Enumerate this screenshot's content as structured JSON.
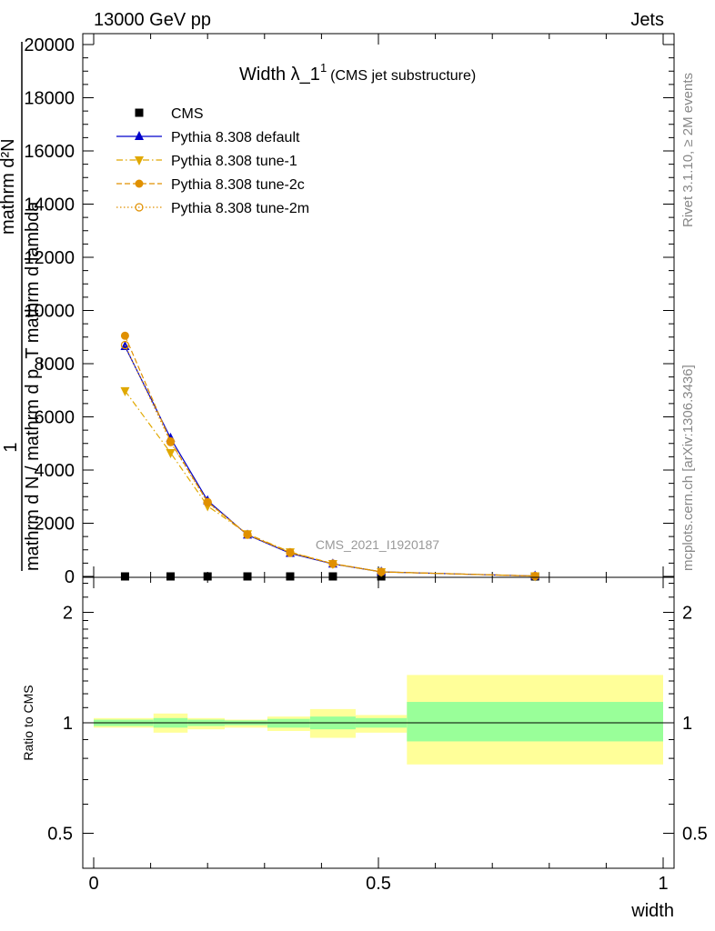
{
  "header": {
    "left": "13000 GeV pp",
    "right": "Jets"
  },
  "side": {
    "rivet": "Rivet 3.1.10, ≥ 2M events",
    "mcplots": "mcplots.cern.ch [arXiv:1306.3436]"
  },
  "watermark": "CMS_2021_I1920187",
  "chart_data": [
    {
      "type": "line",
      "title": "Width λ_1",
      "title_sup": "1",
      "subtitle": "(CMS jet substructure)",
      "ylabel_numerator": "1",
      "ylabel_denominator": "mathrm d N / mathrm d p_T mathrm d lambda",
      "ylabel_top": "mathrm d²N",
      "xlim": [
        0,
        1
      ],
      "ylim": [
        0,
        20500
      ],
      "y_ticks": [
        0,
        2000,
        4000,
        6000,
        8000,
        10000,
        12000,
        14000,
        16000,
        18000,
        20000
      ],
      "y_tick_labels": [
        "0",
        "2000",
        "4000",
        "6000",
        "8000",
        "10000",
        "12000",
        "14000",
        "16000",
        "18000",
        "20000"
      ],
      "x": [
        0.055,
        0.135,
        0.2,
        0.27,
        0.345,
        0.42,
        0.505,
        0.775
      ],
      "series": [
        {
          "name": "CMS",
          "color": "#000000",
          "marker": "square",
          "line": "none",
          "values": [
            0,
            0,
            0,
            0,
            0,
            0,
            0,
            0
          ]
        },
        {
          "name": "Pythia 8.308 default",
          "color": "#0000cc",
          "marker": "triangle-up",
          "line": "solid",
          "values": [
            8650,
            5200,
            2850,
            1560,
            870,
            470,
            170,
            15
          ]
        },
        {
          "name": "Pythia 8.308 tune-1",
          "color": "#e0a800",
          "marker": "triangle-down",
          "line": "dashdot",
          "values": [
            6980,
            4650,
            2650,
            1600,
            920,
            480,
            170,
            15
          ]
        },
        {
          "name": "Pythia 8.308 tune-2c",
          "color": "#e09000",
          "marker": "circle",
          "line": "dashed",
          "values": [
            9050,
            5080,
            2800,
            1580,
            900,
            480,
            170,
            15
          ]
        },
        {
          "name": "Pythia 8.308 tune-2m",
          "color": "#e09000",
          "marker": "circle-open",
          "line": "dotted",
          "values": [
            8700,
            5050,
            2780,
            1570,
            890,
            475,
            170,
            15
          ]
        }
      ],
      "legend": "top-left"
    },
    {
      "type": "area",
      "ylabel": "Ratio to CMS",
      "xlabel": "width",
      "xlim": [
        0,
        1
      ],
      "ylim": [
        0.35,
        2.5
      ],
      "y_ticks": [
        0.5,
        1,
        2
      ],
      "y_tick_labels": [
        "0.5",
        "1",
        "2"
      ],
      "x_ticks": [
        0,
        0.5,
        1
      ],
      "x_tick_labels": [
        "0",
        "0.5",
        "1"
      ],
      "bins": [
        {
          "lo": 0.0,
          "hi": 0.105,
          "inner": [
            0.98,
            1.02
          ],
          "outer": [
            0.97,
            1.03
          ]
        },
        {
          "lo": 0.105,
          "hi": 0.165,
          "inner": [
            0.97,
            1.03
          ],
          "outer": [
            0.94,
            1.06
          ]
        },
        {
          "lo": 0.165,
          "hi": 0.23,
          "inner": [
            0.98,
            1.02
          ],
          "outer": [
            0.96,
            1.03
          ]
        },
        {
          "lo": 0.23,
          "hi": 0.305,
          "inner": [
            0.985,
            1.015
          ],
          "outer": [
            0.97,
            1.02
          ]
        },
        {
          "lo": 0.305,
          "hi": 0.38,
          "inner": [
            0.97,
            1.025
          ],
          "outer": [
            0.95,
            1.04
          ]
        },
        {
          "lo": 0.38,
          "hi": 0.46,
          "inner": [
            0.96,
            1.04
          ],
          "outer": [
            0.91,
            1.09
          ]
        },
        {
          "lo": 0.46,
          "hi": 0.55,
          "inner": [
            0.97,
            1.03
          ],
          "outer": [
            0.94,
            1.05
          ]
        },
        {
          "lo": 0.55,
          "hi": 1.0,
          "inner": [
            0.89,
            1.14
          ],
          "outer": [
            0.77,
            1.35
          ]
        }
      ],
      "inner_color": "#99ff99",
      "outer_color": "#ffff99"
    }
  ]
}
